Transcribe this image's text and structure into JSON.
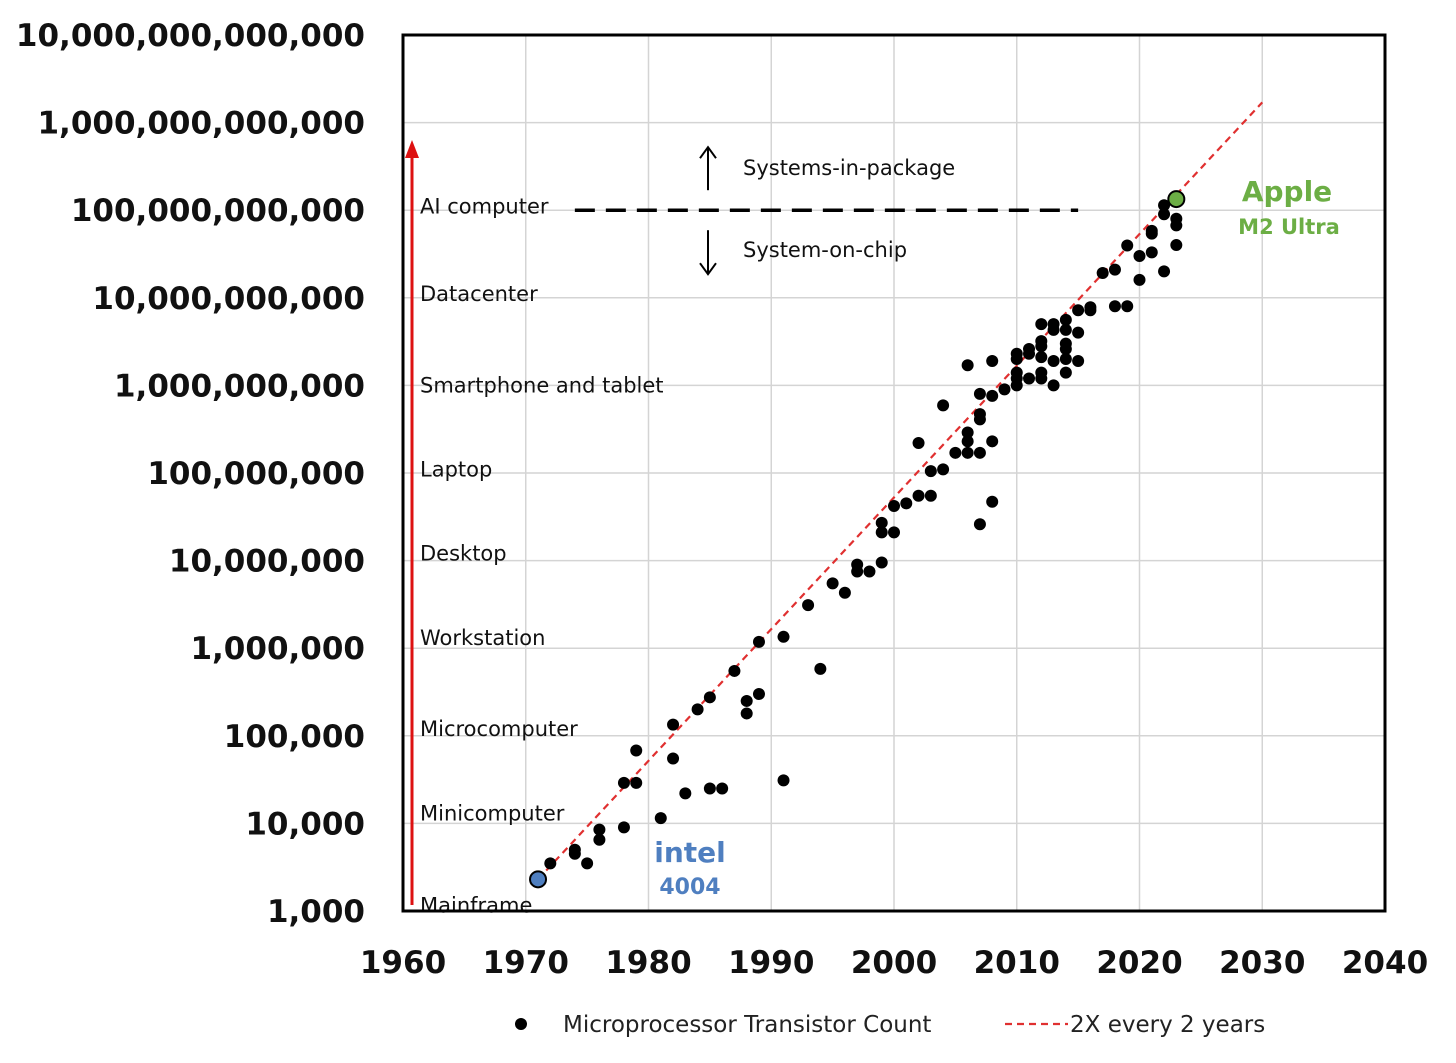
{
  "chart_data": {
    "type": "scatter",
    "y_scale": "log",
    "xlim": [
      1960,
      2040
    ],
    "ylim": [
      1000,
      10000000000000
    ],
    "x_ticks": [
      "1960",
      "1970",
      "1980",
      "1990",
      "2000",
      "2010",
      "2020",
      "2030",
      "2040"
    ],
    "y_ticks": [
      "1,000",
      "10,000",
      "100,000",
      "1,000,000",
      "10,000,000",
      "100,000,000",
      "1,000,000,000",
      "10,000,000,000",
      "100,000,000,000",
      "1,000,000,000,000",
      "10,000,000,000,000"
    ],
    "grid": true,
    "series": [
      {
        "name": "Microprocessor Transistor Count",
        "marker": "dot",
        "color": "#000000",
        "points": [
          [
            1972,
            3500
          ],
          [
            1974,
            4500
          ],
          [
            1974,
            5000
          ],
          [
            1975,
            3500
          ],
          [
            1976,
            6500
          ],
          [
            1976,
            8500
          ],
          [
            1978,
            9000
          ],
          [
            1978,
            29000
          ],
          [
            1979,
            29000
          ],
          [
            1979,
            68000
          ],
          [
            1981,
            11500
          ],
          [
            1982,
            55000
          ],
          [
            1982,
            134000
          ],
          [
            1983,
            22000
          ],
          [
            1984,
            200000
          ],
          [
            1985,
            275000
          ],
          [
            1985,
            25000
          ],
          [
            1986,
            25000
          ],
          [
            1987,
            550000
          ],
          [
            1988,
            180000
          ],
          [
            1988,
            250000
          ],
          [
            1989,
            1180000
          ],
          [
            1989,
            300000
          ],
          [
            1991,
            31000
          ],
          [
            1991,
            1350000
          ],
          [
            1993,
            3100000
          ],
          [
            1994,
            580000
          ],
          [
            1995,
            5500000
          ],
          [
            1996,
            4300000
          ],
          [
            1997,
            7500000
          ],
          [
            1997,
            9000000
          ],
          [
            1998,
            7500000
          ],
          [
            1999,
            9500000
          ],
          [
            1999,
            21000000
          ],
          [
            1999,
            27000000
          ],
          [
            2000,
            21000000
          ],
          [
            2000,
            42000000
          ],
          [
            2001,
            45000000
          ],
          [
            2002,
            55000000
          ],
          [
            2002,
            220000000
          ],
          [
            2003,
            55000000
          ],
          [
            2003,
            105000000
          ],
          [
            2004,
            110000000
          ],
          [
            2004,
            592000000
          ],
          [
            2005,
            170000000
          ],
          [
            2006,
            170000000
          ],
          [
            2006,
            230000000
          ],
          [
            2006,
            290000000
          ],
          [
            2006,
            1700000000
          ],
          [
            2007,
            26000000
          ],
          [
            2007,
            170000000
          ],
          [
            2007,
            410000000
          ],
          [
            2007,
            470000000
          ],
          [
            2007,
            800000000
          ],
          [
            2008,
            47000000
          ],
          [
            2008,
            230000000
          ],
          [
            2008,
            760000000
          ],
          [
            2008,
            1900000000
          ],
          [
            2009,
            900000000
          ],
          [
            2010,
            1000000000
          ],
          [
            2010,
            1200000000
          ],
          [
            2010,
            1400000000
          ],
          [
            2010,
            2000000000
          ],
          [
            2010,
            2300000000
          ],
          [
            2011,
            1200000000
          ],
          [
            2011,
            2300000000
          ],
          [
            2011,
            2600000000
          ],
          [
            2012,
            1200000000
          ],
          [
            2012,
            1400000000
          ],
          [
            2012,
            2100000000
          ],
          [
            2012,
            2800000000
          ],
          [
            2012,
            3200000000
          ],
          [
            2012,
            5000000000
          ],
          [
            2013,
            1000000000
          ],
          [
            2013,
            1900000000
          ],
          [
            2013,
            4300000000
          ],
          [
            2013,
            5000000000
          ],
          [
            2014,
            1400000000
          ],
          [
            2014,
            2000000000
          ],
          [
            2014,
            2600000000
          ],
          [
            2014,
            3000000000
          ],
          [
            2014,
            4300000000
          ],
          [
            2014,
            5600000000
          ],
          [
            2015,
            1900000000
          ],
          [
            2015,
            4000000000
          ],
          [
            2015,
            7200000000
          ],
          [
            2016,
            7200000000
          ],
          [
            2016,
            7800000000
          ],
          [
            2017,
            19200000000
          ],
          [
            2018,
            8000000000
          ],
          [
            2018,
            21000000000
          ],
          [
            2019,
            8000000000
          ],
          [
            2019,
            39500000000
          ],
          [
            2020,
            16000000000
          ],
          [
            2020,
            30000000000
          ],
          [
            2021,
            33000000000
          ],
          [
            2021,
            54000000000
          ],
          [
            2021,
            58000000000
          ],
          [
            2022,
            20000000000
          ],
          [
            2022,
            90000000000
          ],
          [
            2022,
            114000000000
          ],
          [
            2023,
            40000000000
          ],
          [
            2023,
            67000000000
          ],
          [
            2023,
            80000000000
          ]
        ]
      },
      {
        "name": "2X every 2 years",
        "style": "dashed",
        "color": "#e03030",
        "points": [
          [
            1971,
            2300
          ],
          [
            2030,
            1700000000000
          ]
        ]
      }
    ],
    "highlights": [
      {
        "x": 1971,
        "y": 2300,
        "label": "intel",
        "sublabel": "4004",
        "color": "#4f7fc0"
      },
      {
        "x": 2023,
        "y": 134000000000,
        "label": "Apple",
        "sublabel": "M2 Ultra",
        "color": "#6cae45"
      }
    ],
    "categories_axis": {
      "arrow_color": "#dd1111",
      "labels": [
        {
          "label": "Mainframe",
          "y": 1150
        },
        {
          "label": "Minicomputer",
          "y": 13000
        },
        {
          "label": "Microcomputer",
          "y": 120000
        },
        {
          "label": "Workstation",
          "y": 1300000
        },
        {
          "label": "Desktop",
          "y": 12000000
        },
        {
          "label": "Laptop",
          "y": 110000000
        },
        {
          "label": "Smartphone and tablet",
          "y": 1000000000
        },
        {
          "label": "Datacenter",
          "y": 11000000000
        },
        {
          "label": "AI computer",
          "y": 110000000000
        }
      ]
    },
    "threshold": {
      "y": 100000000000,
      "x_from": 1974,
      "x_to": 2015,
      "above_label": "Systems-in-package",
      "below_label": "System-on-chip"
    },
    "legend": {
      "placement": "bottom"
    }
  }
}
